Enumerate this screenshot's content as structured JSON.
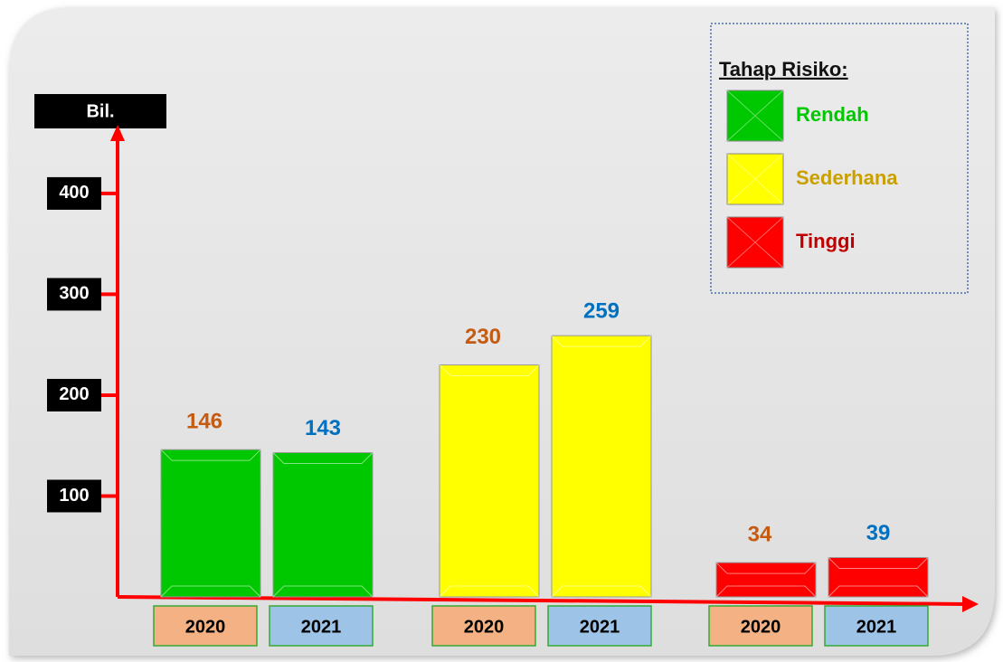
{
  "chart_data": {
    "type": "bar",
    "y_label": "Bil.",
    "legend_title": "Tahap Risiko:",
    "categories": [
      "Rendah",
      "Sederhana",
      "Tinggi"
    ],
    "category_colors": [
      "#00c800",
      "#ffff00",
      "#ff0000"
    ],
    "legend_text_colors": [
      "#00c800",
      "#c9a000",
      "#c00000"
    ],
    "series": [
      {
        "name": "2020",
        "color": "#c55a11",
        "box_color": "#f4b183",
        "values": [
          146,
          230,
          34
        ]
      },
      {
        "name": "2021",
        "color": "#0070c0",
        "box_color": "#9dc3e6",
        "values": [
          143,
          259,
          39
        ]
      }
    ],
    "ylim": [
      0,
      460
    ],
    "yticks": [
      100,
      200,
      300,
      400
    ]
  }
}
